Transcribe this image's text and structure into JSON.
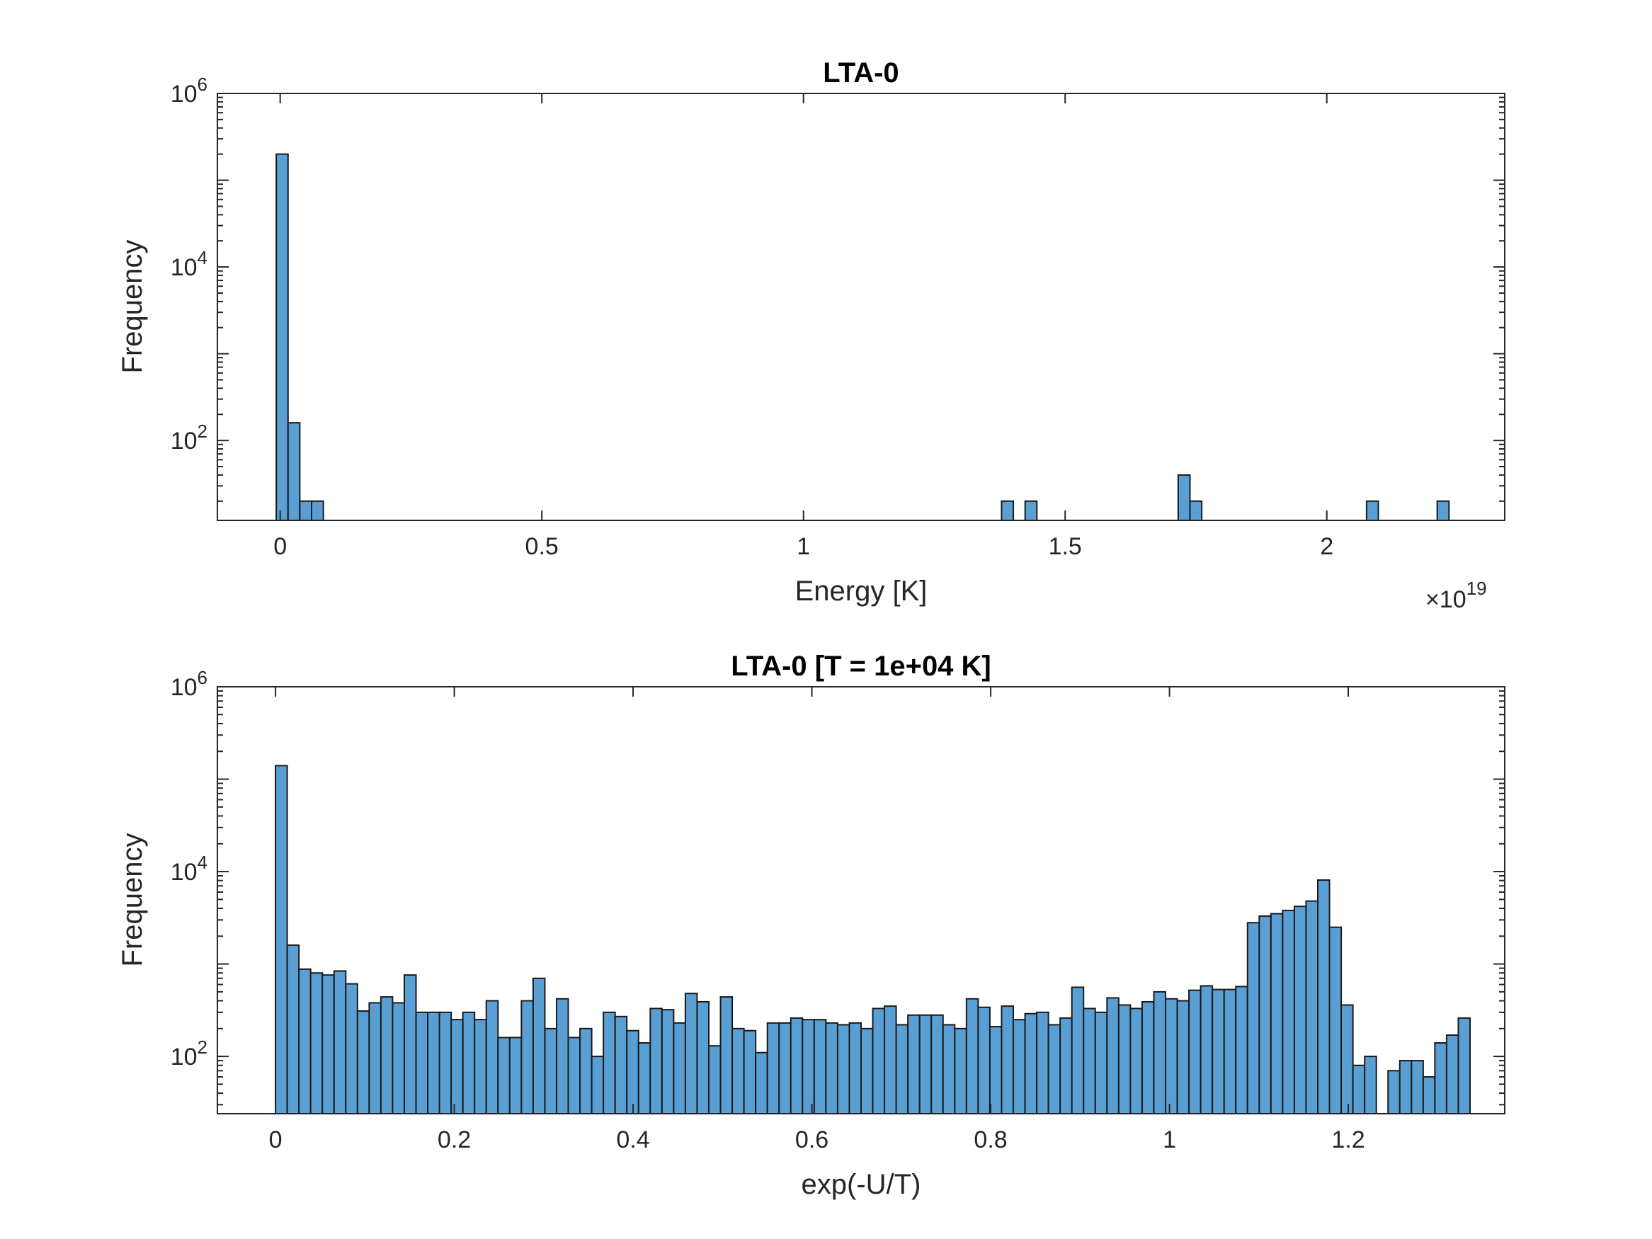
{
  "chart_data": [
    {
      "type": "bar",
      "title": "LTA-0",
      "xlabel": "Energy [K]",
      "ylabel": "Frequency",
      "yscale": "log",
      "xlim": [
        -0.12,
        2.34
      ],
      "ylim": [
        12,
        1000000
      ],
      "x_exponent": "19",
      "x_multiplier": "×10",
      "x_ticks": [
        0,
        0.5,
        1,
        1.5,
        2
      ],
      "x_tick_labels": [
        "0",
        "0.5",
        "1",
        "1.5",
        "2"
      ],
      "y_ticks": [
        100,
        10000,
        1000000
      ],
      "y_tick_base": "10",
      "y_tick_exponents": [
        "2",
        "4",
        "6"
      ],
      "bin_width": 0.0225,
      "bins": [
        {
          "x": -0.0075,
          "v": 200000
        },
        {
          "x": 0.015,
          "v": 160
        },
        {
          "x": 0.0375,
          "v": 20
        },
        {
          "x": 0.06,
          "v": 20
        },
        {
          "x": 1.3785,
          "v": 20
        },
        {
          "x": 1.4235,
          "v": 20
        },
        {
          "x": 1.716,
          "v": 40
        },
        {
          "x": 1.7385,
          "v": 20
        },
        {
          "x": 2.076,
          "v": 20
        },
        {
          "x": 2.211,
          "v": 20
        }
      ],
      "grid": false,
      "bar_color": "#5a9fd4"
    },
    {
      "type": "bar",
      "title": "LTA-0 [T = 1e+04 K]",
      "xlabel": "exp(-U/T)",
      "ylabel": "Frequency",
      "yscale": "log",
      "xlim": [
        -0.065,
        1.375
      ],
      "ylim": [
        24,
        1000000
      ],
      "x_ticks": [
        0,
        0.2,
        0.4,
        0.6,
        0.8,
        1,
        1.2
      ],
      "x_tick_labels": [
        "0",
        "0.2",
        "0.4",
        "0.6",
        "0.8",
        "1",
        "1.2"
      ],
      "y_ticks": [
        100,
        10000,
        1000000
      ],
      "y_tick_base": "10",
      "y_tick_exponents": [
        "2",
        "4",
        "6"
      ],
      "bin_start": 0,
      "bin_width": 0.0131,
      "values": [
        140000,
        1600,
        880,
        800,
        760,
        840,
        610,
        310,
        380,
        440,
        380,
        760,
        300,
        300,
        300,
        250,
        300,
        250,
        400,
        160,
        160,
        400,
        700,
        200,
        420,
        160,
        200,
        100,
        300,
        270,
        190,
        140,
        330,
        320,
        230,
        480,
        390,
        130,
        440,
        200,
        190,
        110,
        230,
        230,
        260,
        250,
        250,
        230,
        220,
        230,
        200,
        330,
        350,
        220,
        280,
        280,
        280,
        220,
        200,
        420,
        340,
        210,
        350,
        250,
        290,
        300,
        220,
        260,
        560,
        330,
        300,
        430,
        360,
        330,
        390,
        500,
        420,
        400,
        520,
        580,
        530,
        530,
        570,
        2800,
        3300,
        3500,
        3800,
        4200,
        4800,
        8100,
        2500,
        360,
        80,
        100,
        0,
        70,
        90,
        90,
        60,
        140,
        170,
        260
      ],
      "grid": false,
      "bar_color": "#5a9fd4"
    }
  ]
}
